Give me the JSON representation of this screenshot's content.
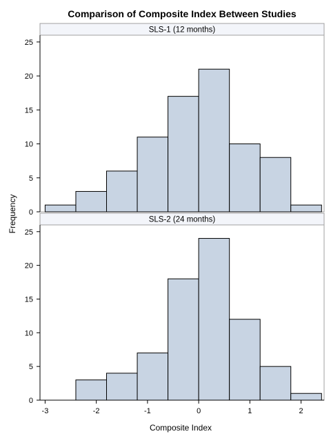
{
  "colors": {
    "bar_fill": "#c8d4e3",
    "bar_stroke": "#000000",
    "panel_border": "#a0a0a0",
    "panel_header_bg": "#f3f5fa",
    "axis_line": "#000000"
  },
  "chart_data": {
    "type": "bar",
    "title": "Comparison of Composite Index Between Studies",
    "xlabel": "Composite Index",
    "ylabel": "Frequency",
    "xlim": [
      -3.1,
      2.45
    ],
    "ylim": [
      0,
      26
    ],
    "xticks": [
      -3,
      -2,
      -1,
      0,
      1,
      2
    ],
    "yticks": [
      0,
      5,
      10,
      15,
      20,
      25
    ],
    "bin_edges": [
      -3.0,
      -2.4,
      -1.8,
      -1.2,
      -0.6,
      0.0,
      0.6,
      1.2,
      1.8,
      2.4
    ],
    "grid": false,
    "panels": [
      {
        "label": "SLS-1 (12 months)",
        "values": [
          1,
          3,
          6,
          11,
          17,
          21,
          10,
          8,
          1
        ]
      },
      {
        "label": "SLS-2 (24 months)",
        "values": [
          0,
          3,
          4,
          7,
          18,
          24,
          12,
          5,
          1
        ]
      }
    ]
  }
}
